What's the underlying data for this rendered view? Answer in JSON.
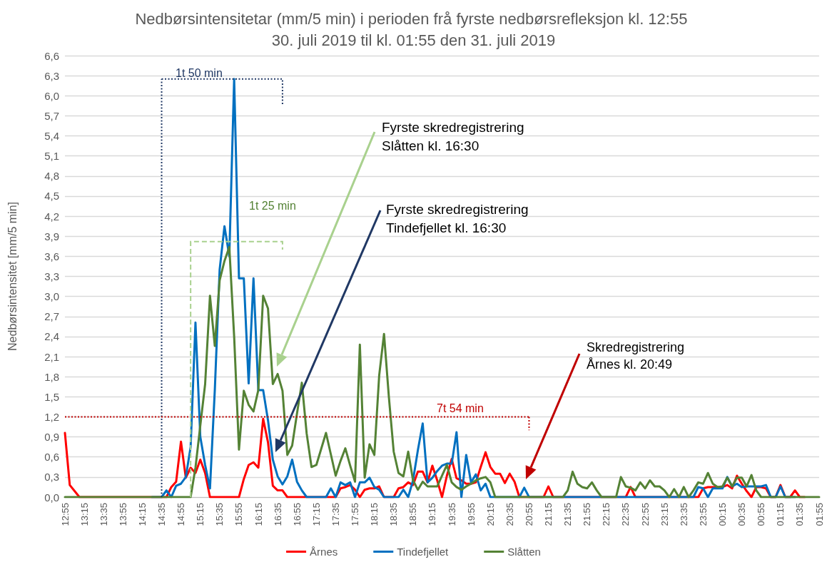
{
  "chart_data": {
    "type": "line",
    "title": "Nedbørsintensitetar (mm/5 min) i perioden frå fyrste nedbørsrefleksjon kl. 12:55 30. juli 2019 til kl. 01:55 den 31. juli 2019",
    "ylabel": "Nedbørsintensitet [mm/5 min]",
    "categories": [
      "12:55",
      null,
      null,
      null,
      "13:15",
      null,
      null,
      null,
      "13:35",
      null,
      null,
      null,
      "13:55",
      null,
      null,
      null,
      "14:15",
      null,
      null,
      null,
      "14:35",
      null,
      null,
      null,
      "14:55",
      null,
      null,
      null,
      "15:15",
      null,
      null,
      null,
      "15:35",
      null,
      null,
      null,
      "15:55",
      null,
      null,
      null,
      "16:15",
      null,
      null,
      null,
      "16:35",
      null,
      null,
      null,
      "16:55",
      null,
      null,
      null,
      "17:15",
      null,
      null,
      null,
      "17:35",
      null,
      null,
      null,
      "17:55",
      null,
      null,
      null,
      "18:15",
      null,
      null,
      null,
      "18:35",
      null,
      null,
      null,
      "18:55",
      null,
      null,
      null,
      "19:15",
      null,
      null,
      null,
      "19:35",
      null,
      null,
      null,
      "19:55",
      null,
      null,
      null,
      "20:15",
      null,
      null,
      null,
      "20:35",
      null,
      null,
      null,
      "20:55",
      null,
      null,
      null,
      "21:15",
      null,
      null,
      null,
      "21:35",
      null,
      null,
      null,
      "21:55",
      null,
      null,
      null,
      "22:15",
      null,
      null,
      null,
      "22:35",
      null,
      null,
      null,
      "22:55",
      null,
      null,
      null,
      "23:15",
      null,
      null,
      null,
      "23:35",
      null,
      null,
      null,
      "23:55",
      null,
      null,
      null,
      "00:15",
      null,
      null,
      null,
      "00:35",
      null,
      null,
      null,
      "00:55",
      null,
      null,
      null,
      "01:15",
      null,
      null,
      null,
      "01:35",
      null,
      null,
      null,
      "01:55"
    ],
    "series": [
      {
        "name": "Årnes",
        "color": "#ff0000",
        "values": [
          0.96,
          0.18,
          0.09,
          0,
          0,
          0,
          0,
          0,
          0,
          0,
          0,
          0,
          0,
          0,
          0,
          0,
          0,
          0,
          0,
          0,
          0,
          0,
          0.15,
          0.23,
          0.83,
          0.29,
          0.44,
          0.36,
          0.56,
          0.36,
          0,
          0,
          0,
          0,
          0,
          0,
          0,
          0.27,
          0.48,
          0.52,
          0.44,
          1.17,
          0.82,
          0.17,
          0.1,
          0.1,
          0,
          0,
          0,
          0,
          0,
          0,
          0,
          0,
          0,
          0,
          0,
          0.13,
          0.15,
          0.18,
          0.11,
          0,
          0.11,
          0.13,
          0.13,
          0.16,
          0,
          0,
          0,
          0.13,
          0.15,
          0.22,
          0.18,
          0.38,
          0.38,
          0.22,
          0.47,
          0.25,
          0,
          0.32,
          0.57,
          0.28,
          0.25,
          0.2,
          0.2,
          0.22,
          0.45,
          0.67,
          0.45,
          0.35,
          0.35,
          0.21,
          0.35,
          0.23,
          0,
          0,
          0,
          0,
          0,
          0,
          0.16,
          0,
          0,
          0,
          0,
          0,
          0,
          0,
          0,
          0,
          0,
          0,
          0,
          0,
          0,
          0,
          0,
          0.15,
          0,
          0,
          0,
          0,
          0,
          0,
          0,
          0,
          0,
          0,
          0,
          0,
          0,
          0,
          0.13,
          0.15,
          0.15,
          0.15,
          0.15,
          0.18,
          0.13,
          0.32,
          0.2,
          0.09,
          0,
          0.15,
          0.15,
          0.13,
          0,
          0,
          0.18,
          0,
          0,
          0.1,
          0,
          0,
          null,
          null,
          null
        ]
      },
      {
        "name": "Tindefjellet",
        "color": "#0070c0",
        "values": [
          null,
          null,
          null,
          null,
          null,
          null,
          null,
          null,
          null,
          null,
          null,
          null,
          null,
          null,
          null,
          null,
          null,
          null,
          0,
          0,
          0,
          0.1,
          0,
          0.17,
          0.2,
          0.3,
          0.75,
          2.61,
          0.9,
          0.48,
          0.13,
          1.6,
          3.4,
          4.05,
          3.6,
          6.25,
          3.27,
          3.27,
          1.7,
          3.27,
          1.6,
          1.6,
          1.15,
          0.56,
          0.31,
          0.19,
          0.31,
          0.56,
          0.23,
          0.1,
          0,
          0,
          0,
          0,
          0,
          0.13,
          0,
          0.22,
          0.18,
          0.22,
          0,
          0.22,
          0.22,
          0.29,
          0.15,
          0.11,
          0,
          0,
          0,
          0,
          0.11,
          0,
          0.25,
          0.7,
          1.1,
          0.22,
          0.29,
          0.39,
          0.47,
          0.5,
          0.5,
          0.97,
          0,
          0.63,
          0.22,
          0.34,
          0.1,
          0.2,
          0,
          0,
          0,
          0,
          0,
          0,
          0,
          0.14,
          0,
          0,
          0,
          0,
          0,
          0,
          0,
          0,
          0,
          0,
          0,
          0,
          0,
          0,
          0,
          0,
          0,
          0,
          0,
          0,
          0,
          0,
          0,
          0,
          0,
          0,
          0,
          0,
          0,
          0,
          0,
          0,
          0,
          0,
          0,
          0.15,
          0.13,
          0,
          0.13,
          0.13,
          0.13,
          0.3,
          0.16,
          0.2,
          0.15,
          0.16,
          0.16,
          0.16,
          0.16,
          0.18,
          0,
          0,
          0.16,
          0,
          0,
          0,
          null,
          null,
          null,
          null,
          null
        ]
      },
      {
        "name": "Slåtten",
        "color": "#548235",
        "values": [
          0,
          0,
          0,
          0,
          0,
          0,
          0,
          0,
          0,
          0,
          0,
          0,
          0,
          0,
          0,
          0,
          0,
          0,
          0,
          0,
          0,
          0,
          0,
          0,
          0,
          0,
          0,
          0.44,
          1.07,
          1.69,
          3.01,
          2.26,
          3.24,
          3.53,
          3.74,
          2.4,
          0.71,
          1.59,
          1.38,
          1.28,
          1.6,
          3.01,
          2.82,
          1.69,
          1.84,
          1.59,
          0.63,
          0.77,
          1.25,
          1.71,
          0.95,
          0.45,
          0.48,
          0.72,
          0.96,
          0.64,
          0.32,
          0.54,
          0.73,
          0.47,
          0.23,
          2.28,
          0.29,
          0.79,
          0.63,
          1.82,
          2.44,
          1.5,
          0.68,
          0.36,
          0.31,
          0.68,
          0.25,
          0.11,
          0.23,
          0.16,
          0.16,
          0.16,
          0.32,
          0.48,
          0.22,
          0.15,
          0.11,
          0.16,
          0.2,
          0.25,
          0.28,
          0.3,
          0.22,
          0,
          0,
          0,
          0,
          0,
          0,
          0,
          0,
          0,
          0,
          0,
          0,
          0,
          0,
          0,
          0.1,
          0.38,
          0.2,
          0.15,
          0.13,
          0.22,
          0.1,
          0,
          0,
          0,
          0,
          0.3,
          0.16,
          0.14,
          0.1,
          0.22,
          0.13,
          0.25,
          0.16,
          0.16,
          0.1,
          0,
          0.12,
          0,
          0.15,
          0,
          0.1,
          0.22,
          0.2,
          0.36,
          0.2,
          0.15,
          0.16,
          0.29,
          0.16,
          0.29,
          0.29,
          0.16,
          0.33,
          0.1,
          0,
          0,
          0,
          0,
          0,
          0,
          0,
          0,
          0,
          0,
          0,
          0,
          0
        ]
      }
    ],
    "ylim": [
      0,
      6.6
    ],
    "yticks": [
      {
        "value": 0,
        "label": "0,0"
      },
      {
        "value": 0.3,
        "label": "0,3"
      },
      {
        "value": 0.6,
        "label": "0,6"
      },
      {
        "value": 0.9,
        "label": "0,9"
      },
      {
        "value": 1.2,
        "label": "1,2"
      },
      {
        "value": 1.5,
        "label": "1,5"
      },
      {
        "value": 1.8,
        "label": "1,8"
      },
      {
        "value": 2.1,
        "label": "2,1"
      },
      {
        "value": 2.4,
        "label": "2,4"
      },
      {
        "value": 2.7,
        "label": "2,7"
      },
      {
        "value": 3.0,
        "label": "3,0"
      },
      {
        "value": 3.3,
        "label": "3,3"
      },
      {
        "value": 3.6,
        "label": "3,6"
      },
      {
        "value": 3.9,
        "label": "3,9"
      },
      {
        "value": 4.2,
        "label": "4,2"
      },
      {
        "value": 4.5,
        "label": "4,5"
      },
      {
        "value": 4.8,
        "label": "4,8"
      },
      {
        "value": 5.1,
        "label": "5,1"
      },
      {
        "value": 5.4,
        "label": "5,4"
      },
      {
        "value": 5.7,
        "label": "5,7"
      },
      {
        "value": 6.0,
        "label": "6,0"
      },
      {
        "value": 6.3,
        "label": "6,3"
      },
      {
        "value": 6.6,
        "label": "6,6"
      }
    ],
    "grid": "y",
    "legend": "bottom",
    "marker": "none",
    "line_style": "solid",
    "ref_lines": [
      {
        "axis": "x",
        "value": "14:35",
        "label": "1t 50 min",
        "color": "#203864",
        "line_style": "dotted"
      },
      {
        "axis": "y",
        "value": 1.2,
        "label": "7t 54 min",
        "color": "#c00000",
        "line_style": "dotted"
      }
    ],
    "annotations": [
      "1t 25 min",
      "Fyrste skredregistrering\nSlåtten kl. 16:30",
      "Fyrste skredregistrering\nTindefjellet kl. 16:30",
      "Skredregistrering\nÅrnes kl. 20:49"
    ]
  }
}
